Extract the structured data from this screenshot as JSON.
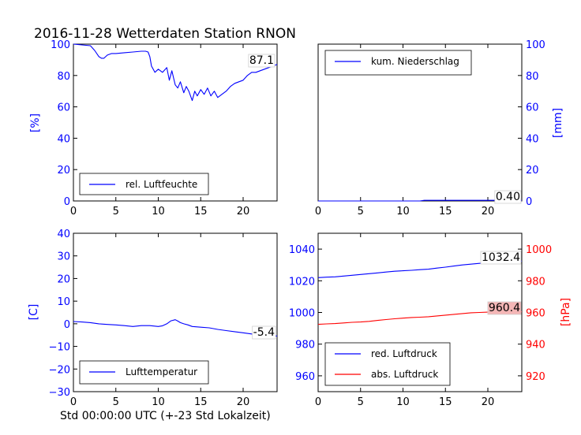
{
  "figure_title": "2016-11-28 Wetterdaten Station RNON",
  "colors": {
    "blue": "#0000ff",
    "red": "#ff0000",
    "black": "#000000",
    "hilite": "#f4b6b6"
  },
  "chart_data": [
    {
      "type": "line",
      "ylabel": "[%]",
      "xlim": [
        0,
        24
      ],
      "ylim": [
        0,
        100
      ],
      "xticks": [
        "0",
        "5",
        "10",
        "15",
        "20"
      ],
      "yticks": [
        "0",
        "20",
        "40",
        "60",
        "80",
        "100"
      ],
      "legend": "lower-left",
      "last_value_label": "87.1",
      "series": [
        {
          "name": "rel. Luftfeuchte",
          "color": "#0000ff",
          "x": [
            0,
            1,
            2,
            2.5,
            3,
            3.3,
            3.6,
            4,
            4.5,
            5,
            6,
            7,
            8,
            8.5,
            8.8,
            9.0,
            9.2,
            9.4,
            9.6,
            10,
            10.5,
            11,
            11.3,
            11.6,
            12,
            12.3,
            12.6,
            13,
            13.3,
            13.6,
            14,
            14.3,
            14.6,
            15,
            15.4,
            15.8,
            16.2,
            16.6,
            17,
            17.5,
            18,
            18.5,
            19,
            19.5,
            20,
            20.5,
            21,
            21.5,
            22,
            22.5,
            23,
            23.5,
            24
          ],
          "y": [
            100,
            99.5,
            99,
            96,
            92,
            91,
            91,
            93,
            94,
            94,
            94.5,
            95,
            95.5,
            95.5,
            95,
            92,
            86,
            84,
            82,
            84,
            82,
            85,
            77,
            83,
            74,
            72,
            76,
            69,
            73,
            70,
            64,
            70,
            67,
            71,
            68,
            72,
            67,
            70,
            66,
            68,
            70,
            73,
            75,
            76,
            77,
            80,
            82,
            82,
            83,
            84,
            85,
            86,
            87.1
          ]
        }
      ]
    },
    {
      "type": "line",
      "ylabel": "[mm]",
      "xlim": [
        0,
        24
      ],
      "ylim": [
        0,
        100
      ],
      "xticks": [
        "0",
        "5",
        "10",
        "15",
        "20"
      ],
      "yticks": [
        "0",
        "20",
        "40",
        "60",
        "80",
        "100"
      ],
      "legend": "top-left",
      "last_value_label": "0.40",
      "series": [
        {
          "name": "kum. Niederschlag",
          "color": "#0000ff",
          "x": [
            0,
            12,
            12.5,
            24
          ],
          "y": [
            0,
            0,
            0.4,
            0.4
          ]
        }
      ]
    },
    {
      "type": "line",
      "ylabel": "[C]",
      "xlabel": "Std 00:00:00 UTC (+-23 Std Lokalzeit)",
      "xlim": [
        0,
        24
      ],
      "ylim": [
        -30,
        40
      ],
      "xticks": [
        "0",
        "5",
        "10",
        "15",
        "20"
      ],
      "yticks": [
        "−30",
        "−20",
        "−10",
        "0",
        "10",
        "20",
        "30",
        "40"
      ],
      "legend": "lower-left",
      "last_value_label": "-5.4",
      "series": [
        {
          "name": "Lufttemperatur",
          "color": "#0000ff",
          "x": [
            0,
            1,
            2,
            3,
            4,
            5,
            6,
            7,
            8,
            9,
            10,
            10.5,
            11,
            11.5,
            12,
            12.3,
            12.6,
            13,
            13.5,
            14,
            15,
            16,
            17,
            18,
            19,
            20,
            21,
            22,
            23,
            24
          ],
          "y": [
            1,
            0.8,
            0.5,
            0,
            -0.3,
            -0.5,
            -0.8,
            -1.2,
            -0.8,
            -0.8,
            -1.2,
            -0.9,
            0,
            1.3,
            1.8,
            1.2,
            0.5,
            0,
            -0.5,
            -1.2,
            -1.5,
            -1.8,
            -2.5,
            -3,
            -3.5,
            -4,
            -4.5,
            -5,
            -5.2,
            -5.4
          ]
        }
      ]
    },
    {
      "type": "line",
      "ylabel_right": "[hPa]",
      "xlim": [
        0,
        24
      ],
      "ylim": [
        950,
        1050
      ],
      "ylim_right": [
        910,
        1010
      ],
      "xticks": [
        "0",
        "5",
        "10",
        "15",
        "20"
      ],
      "yticks": [
        "960",
        "980",
        "1000",
        "1020",
        "1040"
      ],
      "yticks_right": [
        "920",
        "940",
        "960",
        "980",
        "1000"
      ],
      "legend": "lower-left",
      "last_value_label_1": "1032.4",
      "last_value_label_2": "960.4",
      "series": [
        {
          "name": "red. Luftdruck",
          "color": "#0000ff",
          "axis": "left",
          "x": [
            0,
            1,
            2,
            3,
            4,
            5,
            6,
            7,
            8,
            9,
            10,
            11,
            12,
            13,
            14,
            15,
            16,
            17,
            18,
            19,
            20,
            21,
            22,
            23,
            24
          ],
          "y": [
            1022,
            1022.3,
            1022.5,
            1023,
            1023.5,
            1024,
            1024.5,
            1025,
            1025.5,
            1026,
            1026.3,
            1026.6,
            1027,
            1027.3,
            1028,
            1028.6,
            1029.3,
            1030,
            1030.5,
            1031,
            1031.3,
            1031.8,
            1032,
            1032.2,
            1032.4
          ]
        },
        {
          "name": "abs. Luftdruck",
          "color": "#ff0000",
          "axis": "right",
          "x": [
            0,
            1,
            2,
            3,
            4,
            5,
            6,
            7,
            8,
            9,
            10,
            11,
            12,
            13,
            14,
            15,
            16,
            17,
            18,
            19,
            20,
            21,
            22,
            23,
            24
          ],
          "y": [
            952.5,
            952.8,
            953,
            953.4,
            953.8,
            954,
            954.4,
            955,
            955.5,
            956,
            956.4,
            956.8,
            957,
            957.3,
            957.8,
            958.3,
            958.8,
            959.3,
            959.8,
            960,
            960.2,
            960.3,
            960.3,
            960.4,
            960.4
          ]
        }
      ]
    }
  ]
}
